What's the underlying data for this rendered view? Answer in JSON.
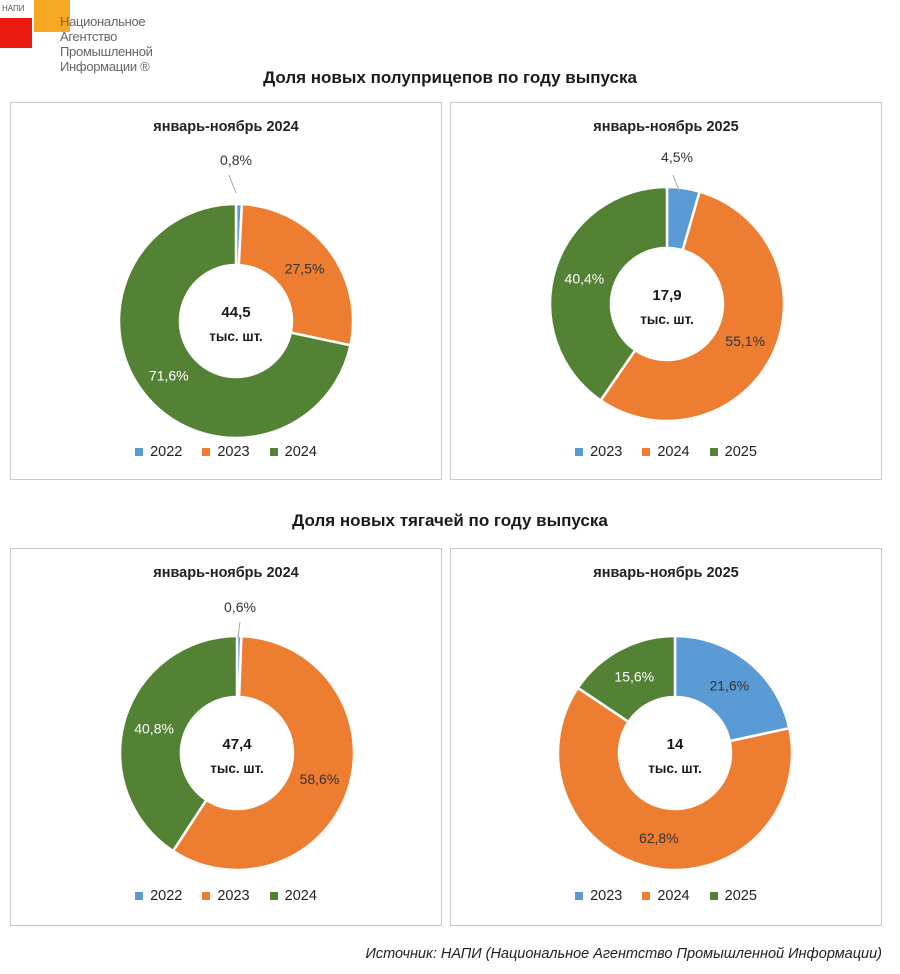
{
  "logo": {
    "abbr": "НАПИ",
    "name": [
      "Национальное",
      "Агентство",
      "Промышленной",
      "Информации ®"
    ]
  },
  "sections": [
    {
      "title": "Доля новых полуприцепов по году выпуска"
    },
    {
      "title": "Доля новых тягачей по году выпуска"
    }
  ],
  "colors": {
    "blue": "#5b9bd5",
    "orange": "#ed7d31",
    "green": "#548235"
  },
  "chart_data": [
    {
      "type": "pie",
      "title": "январь-ноябрь 2024",
      "center_value": "44,5",
      "center_unit": "тыс. шт.",
      "categories": [
        "2022",
        "2023",
        "2024"
      ],
      "values": [
        0.8,
        27.5,
        71.6
      ],
      "labels": [
        "0,8%",
        "27,5%",
        "71,6%"
      ],
      "colors": [
        "#5b9bd5",
        "#ed7d31",
        "#548235"
      ]
    },
    {
      "type": "pie",
      "title": "январь-ноябрь 2025",
      "center_value": "17,9",
      "center_unit": "тыс. шт.",
      "categories": [
        "2023",
        "2024",
        "2025"
      ],
      "values": [
        4.5,
        55.1,
        40.4
      ],
      "labels": [
        "4,5%",
        "55,1%",
        "40,4%"
      ],
      "colors": [
        "#5b9bd5",
        "#ed7d31",
        "#548235"
      ]
    },
    {
      "type": "pie",
      "title": "январь-ноябрь 2024",
      "center_value": "47,4",
      "center_unit": "тыс. шт.",
      "categories": [
        "2022",
        "2023",
        "2024"
      ],
      "values": [
        0.6,
        58.6,
        40.8
      ],
      "labels": [
        "0,6%",
        "58,6%",
        "40,8%"
      ],
      "colors": [
        "#5b9bd5",
        "#ed7d31",
        "#548235"
      ]
    },
    {
      "type": "pie",
      "title": "январь-ноябрь 2025",
      "center_value": "14",
      "center_unit": "тыс. шт.",
      "categories": [
        "2023",
        "2024",
        "2025"
      ],
      "values": [
        21.6,
        62.8,
        15.6
      ],
      "labels": [
        "21,6%",
        "62,8%",
        "15,6%"
      ],
      "colors": [
        "#5b9bd5",
        "#ed7d31",
        "#548235"
      ]
    }
  ],
  "source": "Источник: НАПИ (Национальное Агентство Промышленной Информации)"
}
